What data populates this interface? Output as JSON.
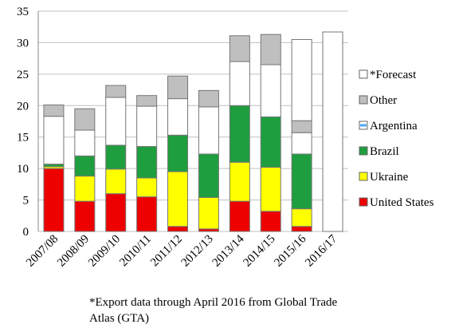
{
  "chart_data": {
    "type": "stacked_bar",
    "categories": [
      "2007/08",
      "2008/09",
      "2009/10",
      "2010/11",
      "2011/12",
      "2012/13",
      "2013/14",
      "2014/15",
      "2015/16",
      "2016/17"
    ],
    "series": [
      {
        "name": "United States",
        "color": "#ee0000",
        "values": [
          10.0,
          4.8,
          6.0,
          5.5,
          0.8,
          0.4,
          4.8,
          3.2,
          0.8,
          0
        ]
      },
      {
        "name": "Ukraine",
        "color": "#ffff00",
        "values": [
          0.3,
          4.0,
          3.9,
          3.0,
          8.7,
          5.0,
          6.2,
          7.0,
          2.8,
          0
        ]
      },
      {
        "name": "Brazil",
        "color": "#1f9e3f",
        "values": [
          0.4,
          3.2,
          3.8,
          5.0,
          5.8,
          6.9,
          9.0,
          8.0,
          8.7,
          0
        ]
      },
      {
        "name": "Argentina",
        "color": "#ffffff",
        "values": [
          7.6,
          4.1,
          7.6,
          6.4,
          5.8,
          7.5,
          7.0,
          8.3,
          3.4,
          0
        ]
      },
      {
        "name": "Other",
        "color": "#bfbfbf",
        "values": [
          1.8,
          3.4,
          1.9,
          1.7,
          3.6,
          2.6,
          4.1,
          4.8,
          1.9,
          0
        ]
      },
      {
        "name": "*Forecast",
        "color": "#ffffff",
        "values": [
          0,
          0,
          0,
          0,
          0,
          0,
          0,
          0,
          12.9,
          31.7
        ]
      }
    ],
    "ylim": [
      0,
      35
    ],
    "yticks": [
      0,
      5,
      10,
      15,
      20,
      25,
      30,
      35
    ],
    "grid": true,
    "footnote": [
      "*Export data through April 2016 from Global Trade",
      "Atlas (GTA)"
    ]
  }
}
